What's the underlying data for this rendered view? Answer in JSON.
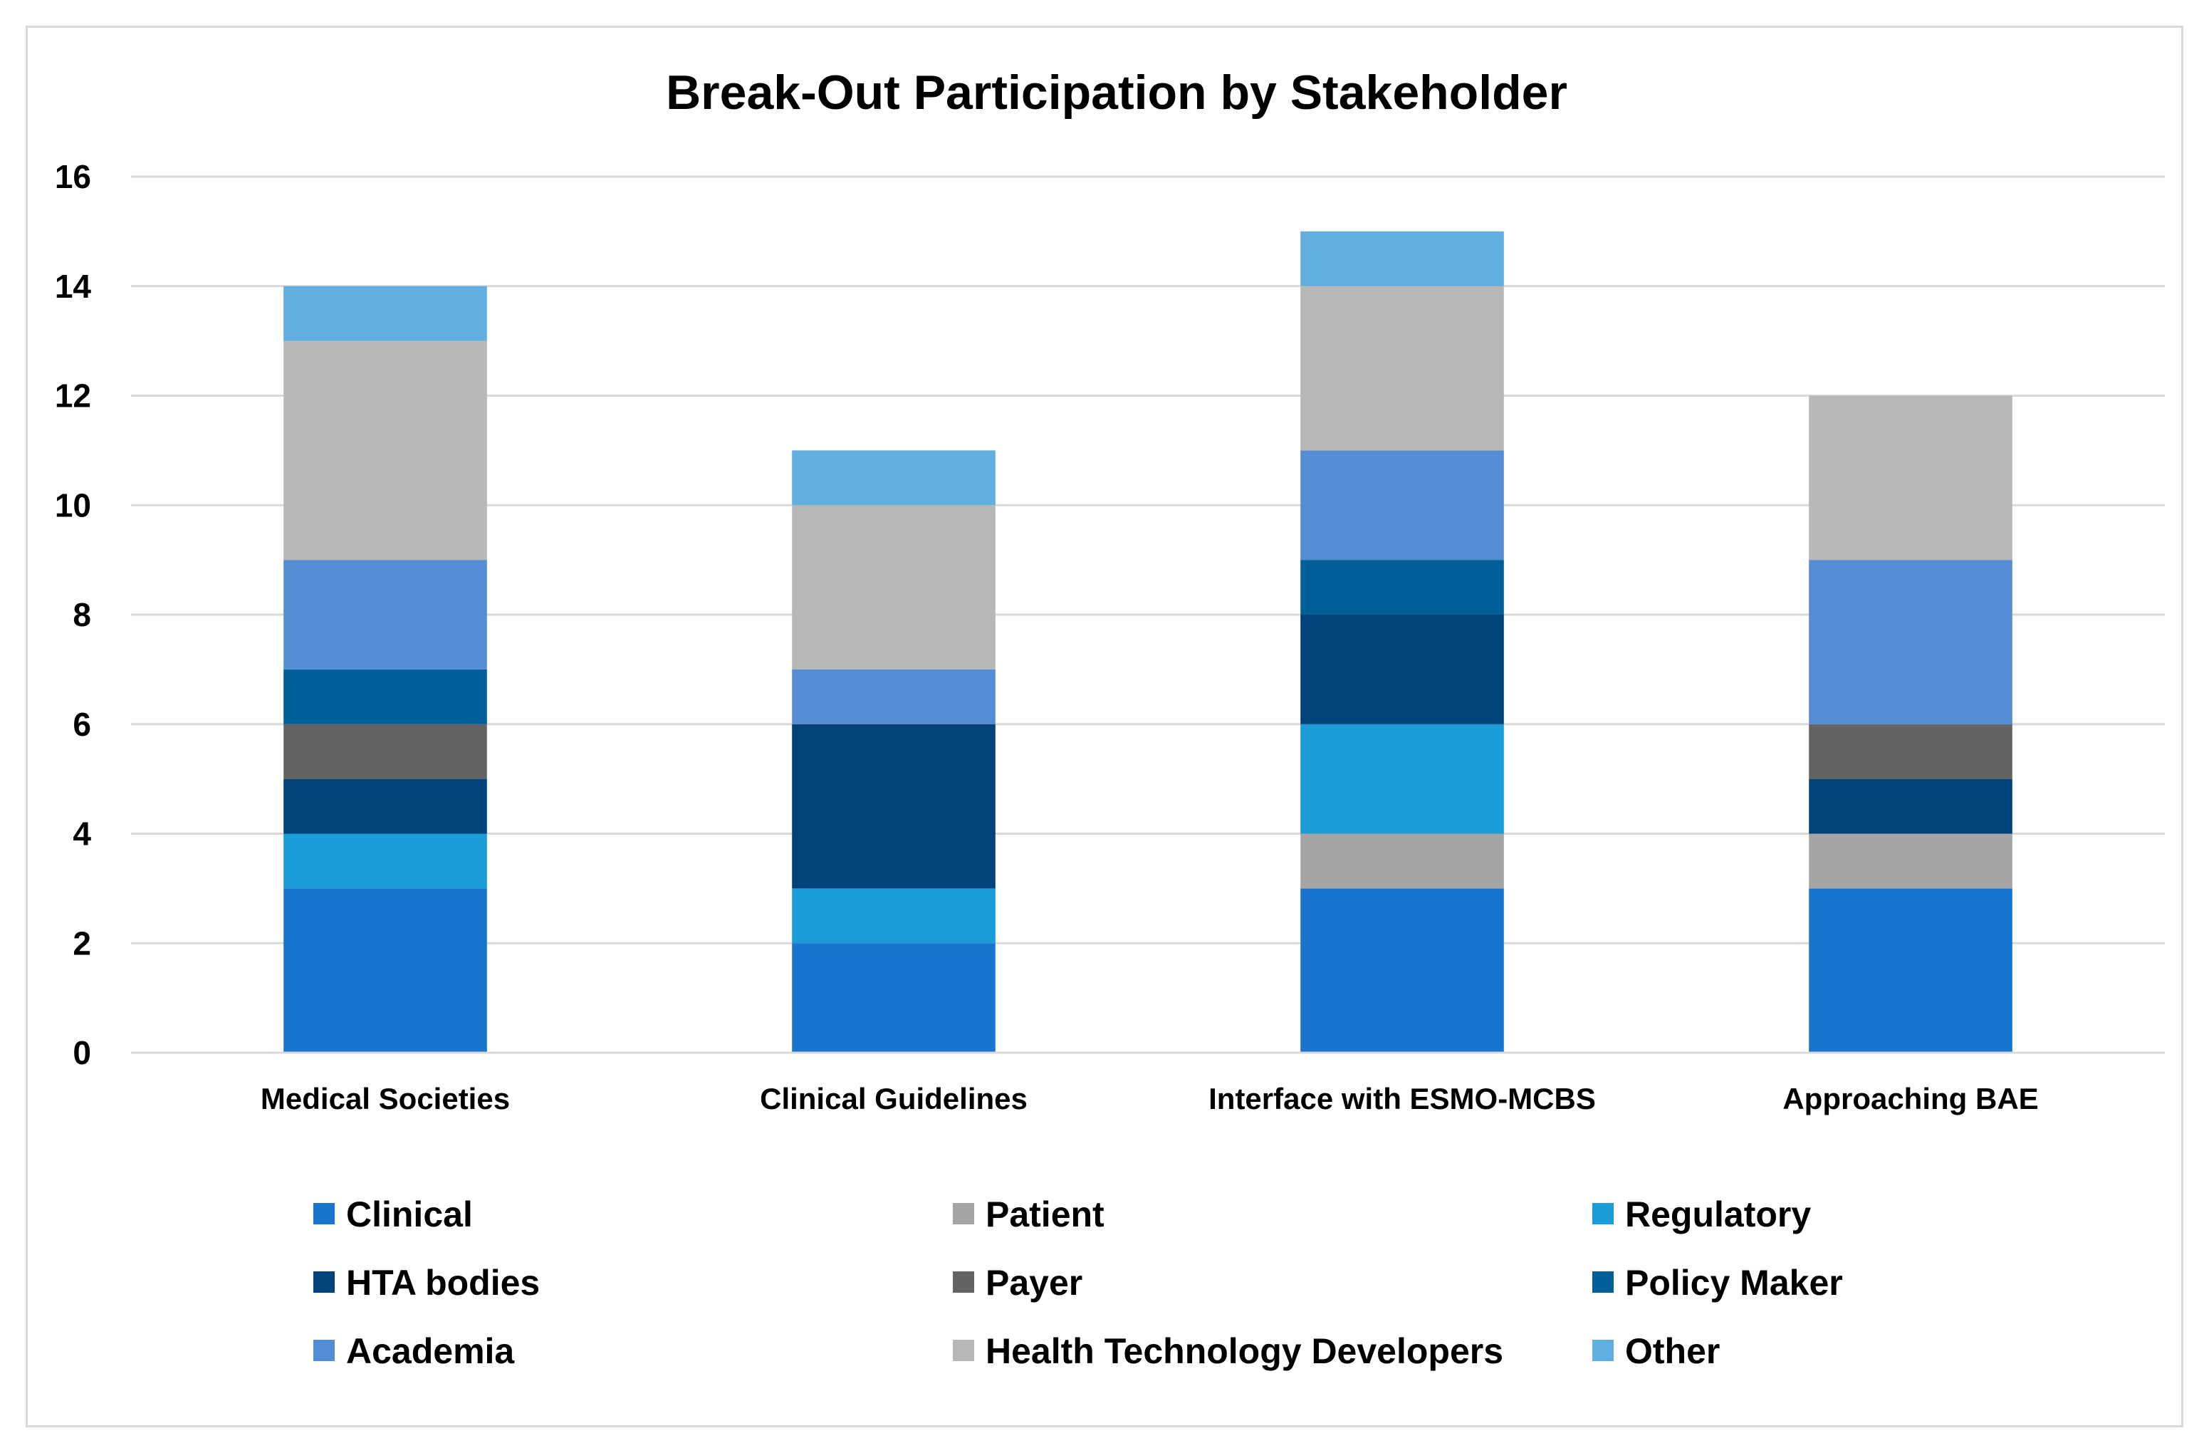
{
  "chart_data": {
    "type": "bar",
    "stacked": true,
    "title": "Break-Out Participation by Stakeholder",
    "xlabel": "",
    "ylabel": "",
    "ylim": [
      0,
      16
    ],
    "yticks": [
      0,
      2,
      4,
      6,
      8,
      10,
      12,
      14,
      16
    ],
    "grid": true,
    "legend_position": "bottom",
    "categories": [
      "Medical Societies",
      "Clinical Guidelines",
      "Interface with ESMO-MCBS",
      "Approaching BAE"
    ],
    "series": [
      {
        "name": "Clinical",
        "color": "#1874CD",
        "values": [
          3,
          2,
          3,
          3
        ]
      },
      {
        "name": "Patient",
        "color": "#A5A5A5",
        "values": [
          0,
          0,
          1,
          1
        ]
      },
      {
        "name": "Regulatory",
        "color": "#1A9CD8",
        "values": [
          1,
          1,
          2,
          0
        ]
      },
      {
        "name": "HTA bodies",
        "color": "#00427A",
        "values": [
          1,
          3,
          2,
          1
        ]
      },
      {
        "name": "Payer",
        "color": "#636363",
        "values": [
          1,
          0,
          0,
          1
        ]
      },
      {
        "name": "Policy Maker",
        "color": "#005F96",
        "values": [
          1,
          0,
          1,
          0
        ]
      },
      {
        "name": "Academia",
        "color": "#548DD4",
        "values": [
          2,
          1,
          2,
          3
        ]
      },
      {
        "name": "Health Technology Developers",
        "color": "#B7B7B7",
        "values": [
          4,
          3,
          3,
          3
        ]
      },
      {
        "name": "Other",
        "color": "#61AEE0",
        "values": [
          1,
          1,
          1,
          0
        ]
      }
    ]
  }
}
